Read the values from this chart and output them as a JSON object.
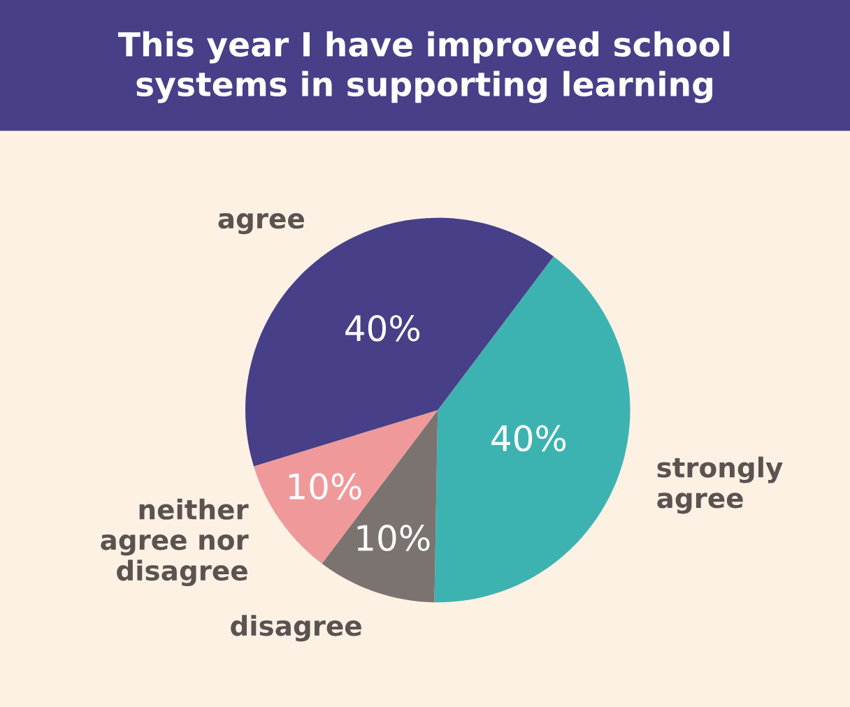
{
  "chart_data": {
    "type": "pie",
    "title": "This year I have improved school\nsystems in supporting learning",
    "categories": [
      "strongly\nagree",
      "disagree",
      "neither\nagree nor\ndisagree",
      "agree"
    ],
    "values": [
      40,
      10,
      10,
      40
    ],
    "colors": [
      "#3db3b1",
      "#7a7370",
      "#f0999a",
      "#473f87"
    ],
    "value_labels": [
      "40%",
      "10%",
      "10%",
      "40%"
    ],
    "legend": false
  }
}
